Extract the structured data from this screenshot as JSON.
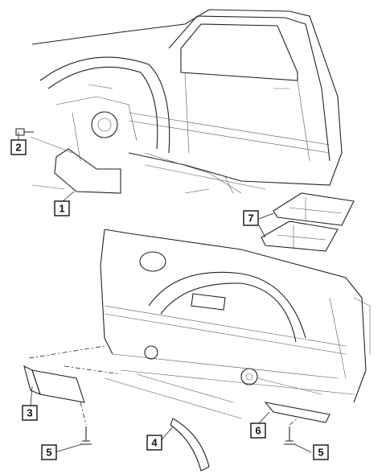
{
  "callouts": [
    {
      "label": "2"
    },
    {
      "label": "1"
    },
    {
      "label": "7"
    },
    {
      "label": "3"
    },
    {
      "label": "4"
    },
    {
      "label": "6"
    },
    {
      "label": "5"
    },
    {
      "label": "5"
    }
  ]
}
